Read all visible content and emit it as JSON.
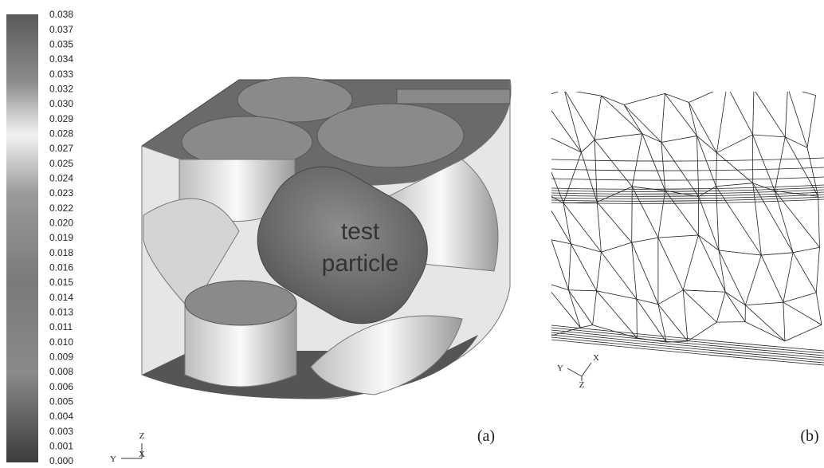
{
  "colorbar": {
    "labels": [
      "0.038",
      "0.037",
      "0.035",
      "0.034",
      "0.033",
      "0.032",
      "0.030",
      "0.029",
      "0.028",
      "0.027",
      "0.025",
      "0.024",
      "0.023",
      "0.022",
      "0.020",
      "0.019",
      "0.018",
      "0.016",
      "0.015",
      "0.014",
      "0.013",
      "0.011",
      "0.010",
      "0.009",
      "0.008",
      "0.006",
      "0.005",
      "0.004",
      "0.003",
      "0.001",
      "0.000"
    ]
  },
  "panel_a": {
    "annotation": [
      "test",
      "particle"
    ],
    "label": "(a)",
    "axes": {
      "z": "Z",
      "y": "Y",
      "x": "X"
    }
  },
  "panel_b": {
    "label": "(b)",
    "axes": {
      "y": "Y",
      "x": "X",
      "z": "Z"
    }
  }
}
